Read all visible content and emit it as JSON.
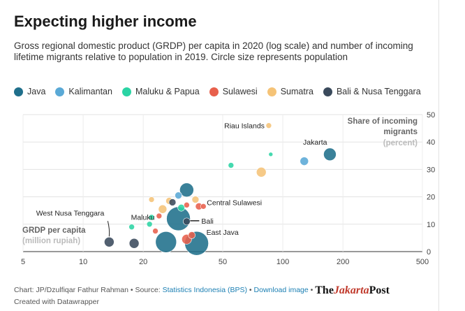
{
  "header": {
    "title": "Expecting higher income",
    "subtitle": "Gross regional domestic product (GRDP) per capita in 2020 (log scale) and number of incoming lifetime migrants relative to population in 2019. Circle size represents population"
  },
  "legend": [
    {
      "label": "Java",
      "color": "#1f6f8b"
    },
    {
      "label": "Kalimantan",
      "color": "#5aa9d6"
    },
    {
      "label": "Maluku & Papua",
      "color": "#2bd4a4"
    },
    {
      "label": "Sulawesi",
      "color": "#e8604c"
    },
    {
      "label": "Sumatra",
      "color": "#f5c377"
    },
    {
      "label": "Bali & Nusa Tenggara",
      "color": "#3a4a5c"
    }
  ],
  "footer": {
    "prefix": "Chart: JP/Dzulfiqar Fathur Rahman • Source: ",
    "source": "Statistics Indonesia (BPS)",
    "sep": " • ",
    "download": "Download image",
    "sep2": " • ",
    "brand_a": "The",
    "brand_b": "Jakarta",
    "brand_c": "Post",
    "created": "Created with Datawrapper"
  },
  "chart_data": {
    "type": "scatter",
    "xlabel_line1": "GRDP per capita",
    "xlabel_line2": "(million rupiah)",
    "ylabel_line1": "Share of incoming",
    "ylabel_line2": "migrants",
    "ylabel_line3": "(percent)",
    "x_scale": "log",
    "xlim": [
      5,
      500
    ],
    "ylim": [
      0,
      50
    ],
    "x_ticks": [
      5,
      10,
      20,
      50,
      100,
      200,
      500
    ],
    "y_ticks": [
      0,
      10,
      20,
      30,
      40,
      50
    ],
    "grid": true,
    "points": [
      {
        "label": "Riau Islands",
        "x": 85,
        "y": 46,
        "group": "Sumatra",
        "size": 4
      },
      {
        "label": "",
        "x": 87,
        "y": 35.5,
        "group": "Maluku & Papua",
        "size": 3
      },
      {
        "label": "Jakarta",
        "x": 172,
        "y": 35.5,
        "group": "Java",
        "size": 9
      },
      {
        "label": "",
        "x": 128,
        "y": 33,
        "group": "Kalimantan",
        "size": 6
      },
      {
        "label": "",
        "x": 55,
        "y": 31.5,
        "group": "Maluku & Papua",
        "size": 4
      },
      {
        "label": "",
        "x": 78,
        "y": 29,
        "group": "Sumatra",
        "size": 7
      },
      {
        "label": "",
        "x": 33,
        "y": 22.5,
        "group": "Java",
        "size": 10
      },
      {
        "label": "",
        "x": 30,
        "y": 20.5,
        "group": "Kalimantan",
        "size": 5
      },
      {
        "label": "",
        "x": 36.5,
        "y": 19,
        "group": "Sumatra",
        "size": 5
      },
      {
        "label": "",
        "x": 22,
        "y": 19,
        "group": "Sumatra",
        "size": 4
      },
      {
        "label": "",
        "x": 27,
        "y": 18.5,
        "group": "Sumatra",
        "size": 5
      },
      {
        "label": "",
        "x": 28,
        "y": 18,
        "group": "Bali & Nusa Tenggara",
        "size": 5
      },
      {
        "label": "",
        "x": 38,
        "y": 16.5,
        "group": "Sulawesi",
        "size": 5
      },
      {
        "label": "Central Sulawesi",
        "x": 40,
        "y": 16.5,
        "group": "Sulawesi",
        "size": 4
      },
      {
        "label": "",
        "x": 33,
        "y": 17,
        "group": "Sulawesi",
        "size": 4
      },
      {
        "label": "",
        "x": 25,
        "y": 15.5,
        "group": "Sumatra",
        "size": 6
      },
      {
        "label": "",
        "x": 31,
        "y": 16,
        "group": "Maluku & Papua",
        "size": 5
      },
      {
        "label": "",
        "x": 24,
        "y": 13,
        "group": "Sulawesi",
        "size": 4
      },
      {
        "label": "",
        "x": 22,
        "y": 12.5,
        "group": "Maluku & Papua",
        "size": 4
      },
      {
        "label": "",
        "x": 30,
        "y": 12,
        "group": "Java",
        "size": 17
      },
      {
        "label": "Bali",
        "x": 33,
        "y": 11,
        "group": "Bali & Nusa Tenggara",
        "size": 5
      },
      {
        "label": "",
        "x": 21.5,
        "y": 10,
        "group": "Maluku & Papua",
        "size": 4
      },
      {
        "label": "Maluku",
        "x": 17.5,
        "y": 9,
        "group": "Maluku & Papua",
        "size": 4
      },
      {
        "label": "",
        "x": 23,
        "y": 7.5,
        "group": "Sulawesi",
        "size": 4
      },
      {
        "label": "",
        "x": 35,
        "y": 6,
        "group": "Sulawesi",
        "size": 5
      },
      {
        "label": "",
        "x": 33,
        "y": 4.5,
        "group": "Sulawesi",
        "size": 7
      },
      {
        "label": "East Java",
        "x": 37,
        "y": 3,
        "group": "Java",
        "size": 17
      },
      {
        "label": "",
        "x": 26,
        "y": 3.5,
        "group": "Java",
        "size": 15
      },
      {
        "label": "West Nusa Tenggara",
        "x": 13.5,
        "y": 3.5,
        "group": "Bali & Nusa Tenggara",
        "size": 7
      },
      {
        "label": "",
        "x": 18,
        "y": 3,
        "group": "Bali & Nusa Tenggara",
        "size": 7
      }
    ]
  }
}
